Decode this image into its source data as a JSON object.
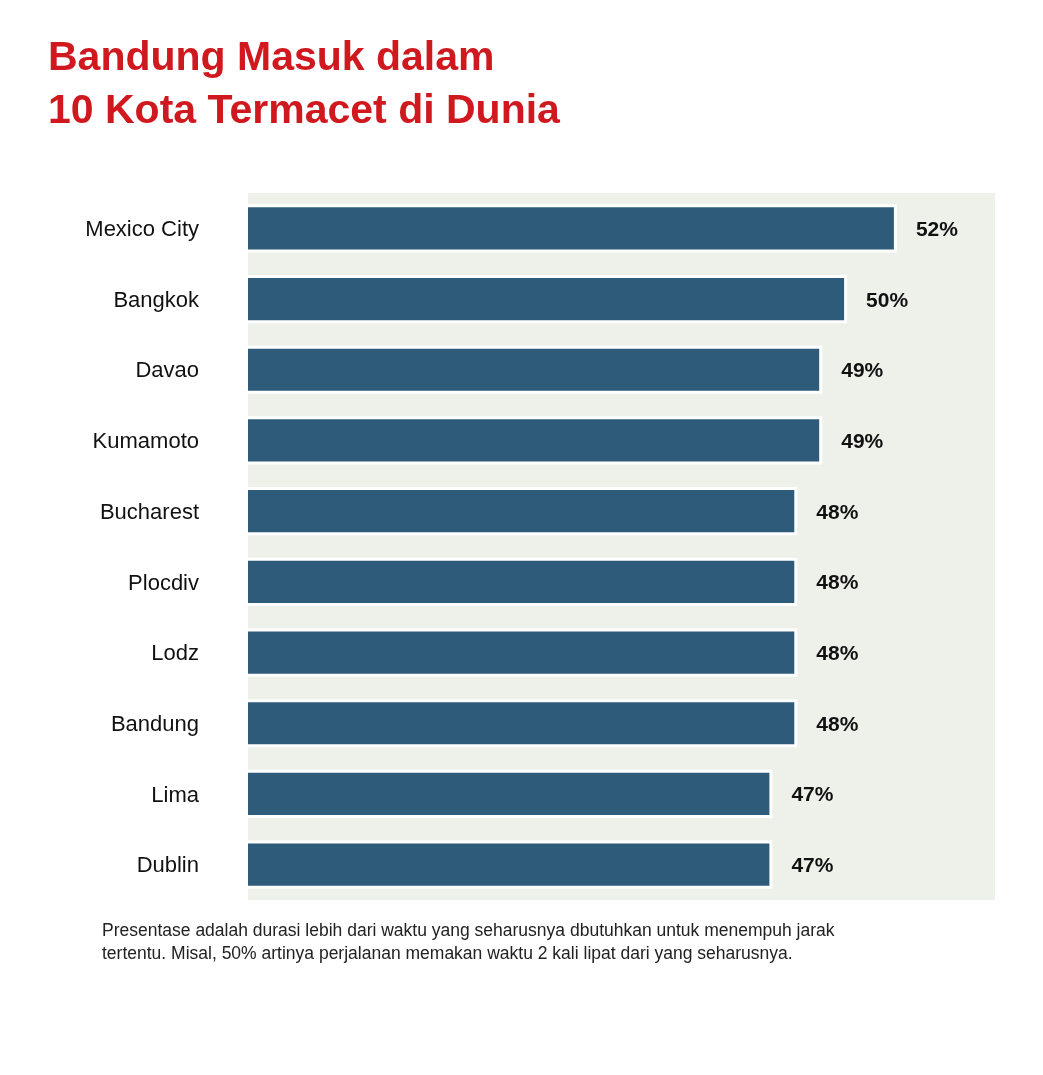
{
  "chart_data": {
    "type": "bar",
    "orientation": "horizontal",
    "title": "Bandung Masuk dalam\n10 Kota Termacet di Dunia",
    "categories": [
      "Mexico City",
      "Bangkok",
      "Davao",
      "Kumamoto",
      "Bucharest",
      "Plocdiv",
      "Lodz",
      "Bandung",
      "Lima",
      "Dublin"
    ],
    "values": [
      52,
      50,
      49,
      49,
      48,
      48,
      48,
      48,
      47,
      47
    ],
    "value_labels": [
      "52%",
      "50%",
      "49%",
      "49%",
      "48%",
      "48%",
      "48%",
      "48%",
      "47%",
      "47%"
    ],
    "color": "#2f5b7b",
    "xlim": [
      26,
      56
    ],
    "tick_labels": "y",
    "grid": false,
    "annotations": [
      "Presentase adalah durasi lebih dari waktu yang seharusnya dbutuhkan untuk menempuh jarak\ntertentu. Misal, 50% artinya perjalanan memakan waktu 2 kali lipat dari yang seharusnya."
    ]
  }
}
